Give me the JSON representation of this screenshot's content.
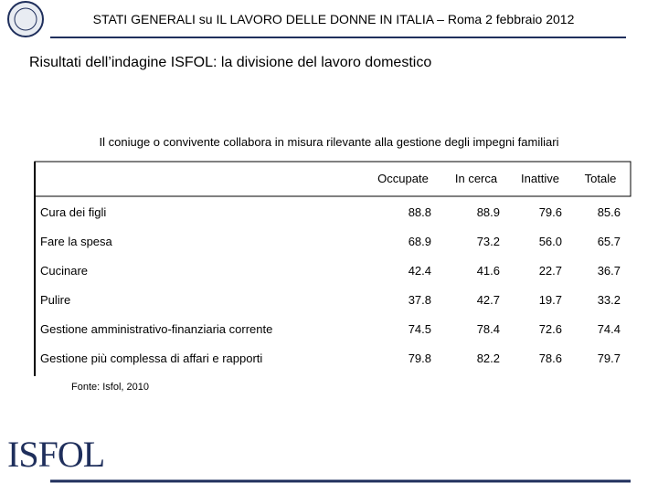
{
  "header": {
    "title": "STATI GENERALI su IL LAVORO DELLE DONNE IN ITALIA – Roma 2 febbraio 2012"
  },
  "subtitle": "Risultati dell’indagine ISFOL: la divisione del lavoro domestico",
  "table": {
    "caption": "Il coniuge o convivente collabora in misura rilevante alla gestione degli impegni familiari",
    "columns": [
      "Occupate",
      "In cerca",
      "Inattive",
      "Totale"
    ],
    "rows": [
      [
        "Cura dei figli",
        "88.8",
        "88.9",
        "79.6",
        "85.6"
      ],
      [
        "Fare la spesa",
        "68.9",
        "73.2",
        "56.0",
        "65.7"
      ],
      [
        "Cucinare",
        "42.4",
        "41.6",
        "22.7",
        "36.7"
      ],
      [
        "Pulire",
        "37.8",
        "42.7",
        "19.7",
        "33.2"
      ],
      [
        "Gestione amministrativo-finanziaria corrente",
        "74.5",
        "78.4",
        "72.6",
        "74.4"
      ],
      [
        "Gestione più complessa di affari e rapporti",
        "79.8",
        "82.2",
        "78.6",
        "79.7"
      ]
    ],
    "source": "Fonte: Isfol, 2010"
  },
  "footer": {
    "logo": "ISFOL"
  }
}
